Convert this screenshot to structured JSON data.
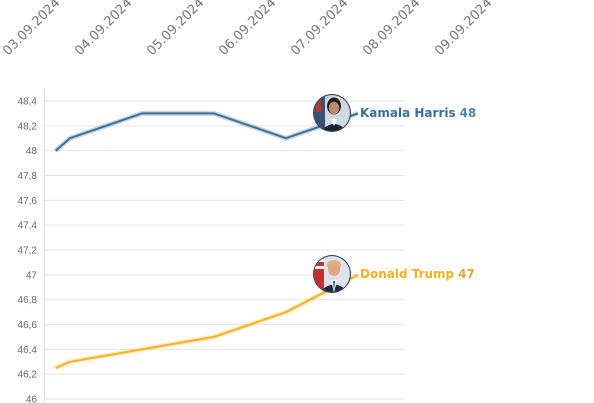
{
  "chart_data": {
    "type": "line",
    "title": "",
    "xlabel": "",
    "ylabel": "",
    "x": [
      "03.09.2024",
      "04.09.2024",
      "05.09.2024",
      "06.09.2024",
      "07.09.2024",
      "08.09.2024",
      "09.09.2024"
    ],
    "ylim": [
      46,
      48.4
    ],
    "yticks": [
      "46",
      "46,2",
      "46,4",
      "46,6",
      "46,8",
      "47",
      "47,2",
      "47,4",
      "47,6",
      "47,8",
      "48",
      "48,2",
      "48,4"
    ],
    "grid": true,
    "series": [
      {
        "name": "Kamala Harris",
        "end_label": "48",
        "color": "#3d6f99",
        "avatar": "kamala-harris-portrait",
        "points": [
          [
            0.8,
            48.0
          ],
          [
            1,
            48.1
          ],
          [
            2,
            48.3
          ],
          [
            3,
            48.3
          ],
          [
            4,
            48.1
          ],
          [
            5,
            48.3
          ]
        ]
      },
      {
        "name": "Donald Trump",
        "end_label": "47",
        "color": "#f0b323",
        "avatar": "donald-trump-portrait",
        "points": [
          [
            0.8,
            46.25
          ],
          [
            1,
            46.3
          ],
          [
            2,
            46.4
          ],
          [
            3,
            46.5
          ],
          [
            4,
            46.7
          ],
          [
            5,
            47.0
          ]
        ]
      }
    ]
  }
}
